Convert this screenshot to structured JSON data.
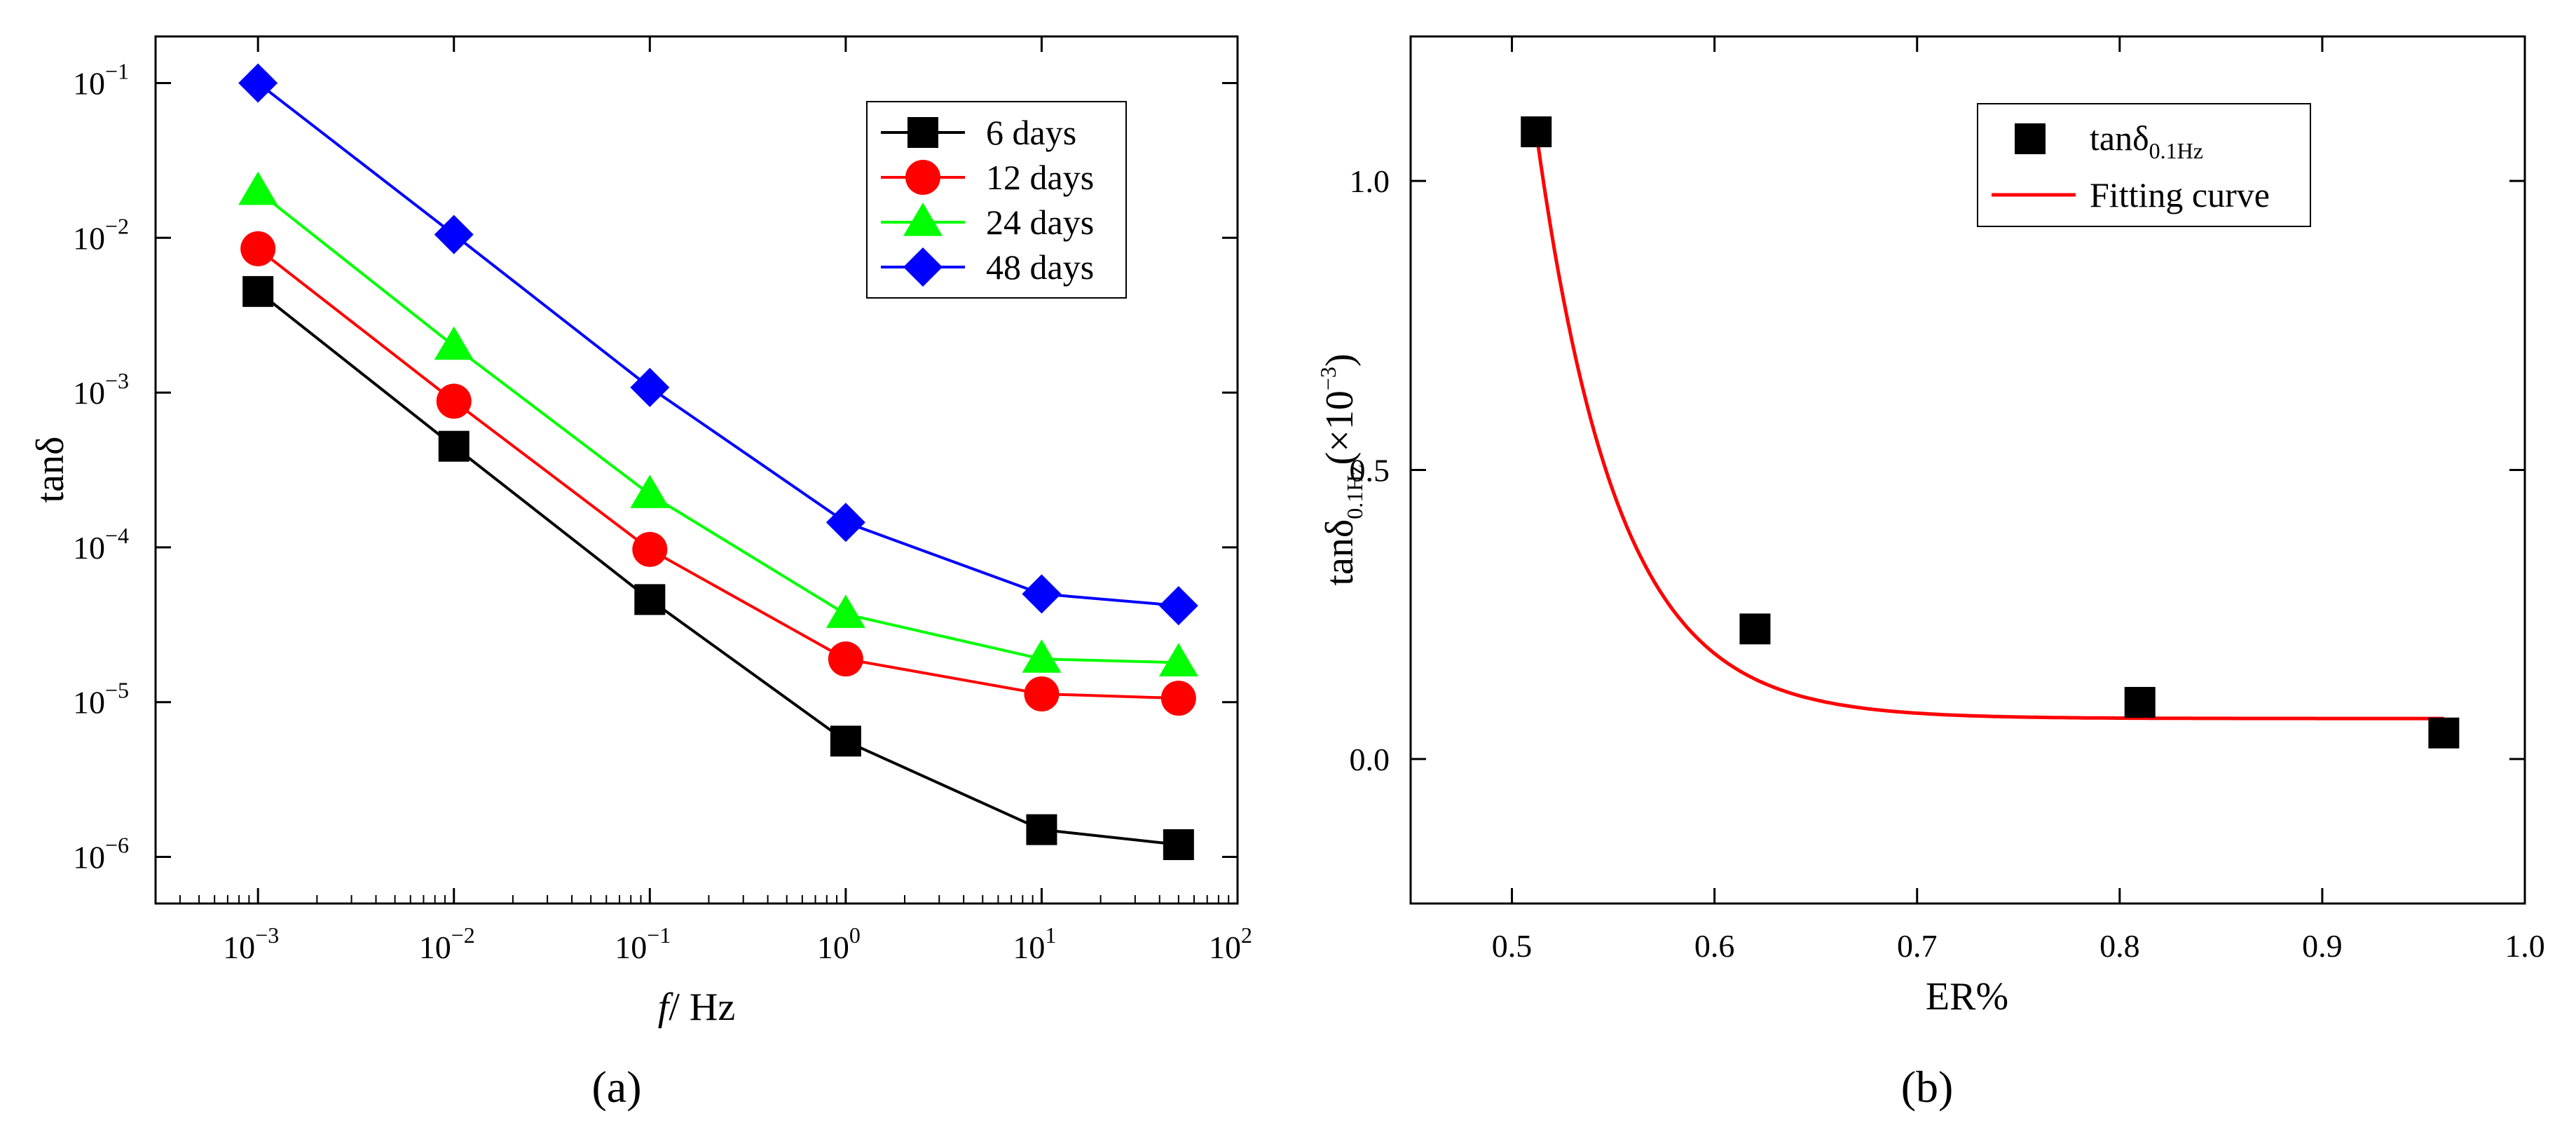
{
  "chart_data": [
    {
      "panel_label": "(a)",
      "type": "line",
      "x_scale": "log",
      "y_scale": "log",
      "xlabel": {
        "italic": "f",
        "rest": "/ Hz"
      },
      "ylabel": "tanδ",
      "xlim": [
        0.0003,
        100
      ],
      "ylim": [
        5e-07,
        0.2
      ],
      "x_ticks": [
        {
          "value": 0.001,
          "base": "10",
          "exp": "−3"
        },
        {
          "value": 0.01,
          "base": "10",
          "exp": "−2"
        },
        {
          "value": 0.1,
          "base": "10",
          "exp": "−1"
        },
        {
          "value": 1,
          "base": "10",
          "exp": "0"
        },
        {
          "value": 10,
          "base": "10",
          "exp": "1"
        },
        {
          "value": 100,
          "base": "10",
          "exp": "2"
        }
      ],
      "y_ticks": [
        {
          "value": 1e-06,
          "base": "10",
          "exp": "−6"
        },
        {
          "value": 1e-05,
          "base": "10",
          "exp": "−5"
        },
        {
          "value": 0.0001,
          "base": "10",
          "exp": "−4"
        },
        {
          "value": 0.001,
          "base": "10",
          "exp": "−3"
        },
        {
          "value": 0.01,
          "base": "10",
          "exp": "−2"
        },
        {
          "value": 0.1,
          "base": "10",
          "exp": "−1"
        }
      ],
      "x": [
        0.001,
        0.01,
        0.1,
        1,
        10,
        50
      ],
      "legend_position": "top-right",
      "series": [
        {
          "name": "6 days",
          "color": "#000000",
          "marker": "square",
          "values": [
            0.0045,
            0.00045,
            4.6e-05,
            5.6e-06,
            1.5e-06,
            1.2e-06
          ]
        },
        {
          "name": "12 days",
          "color": "#ff0000",
          "marker": "circle",
          "values": [
            0.0085,
            0.00088,
            9.7e-05,
            1.9e-05,
            1.13e-05,
            1.06e-05
          ]
        },
        {
          "name": "24 days",
          "color": "#00ff00",
          "marker": "triangle",
          "values": [
            0.02,
            0.002,
            0.00022,
            3.7e-05,
            1.9e-05,
            1.8e-05
          ]
        },
        {
          "name": "48 days",
          "color": "#0000ff",
          "marker": "diamond",
          "values": [
            0.1,
            0.0105,
            0.00108,
            0.000145,
            5e-05,
            4.2e-05
          ]
        }
      ]
    },
    {
      "panel_label": "(b)",
      "type": "scatter",
      "xlabel": "ER%",
      "ylabel": {
        "main": "tanδ",
        "sub": "0.1Hz",
        "tail_open": "(×10",
        "sup": "−3",
        "tail_close": ")"
      },
      "xlim": [
        0.45,
        1.0
      ],
      "ylim": [
        -0.25,
        1.25
      ],
      "x_ticks": [
        "0.5",
        "0.6",
        "0.7",
        "0.8",
        "0.9",
        "1.0"
      ],
      "y_ticks": [
        "0.0",
        "0.5",
        "1.0"
      ],
      "legend_position": "top-right",
      "series": [
        {
          "name_main": "tanδ",
          "name_sub": "0.1Hz",
          "color": "#000000",
          "marker": "square",
          "x": [
            0.512,
            0.62,
            0.81,
            0.96
          ],
          "y": [
            1.085,
            0.225,
            0.098,
            0.045
          ]
        }
      ],
      "fit": {
        "name": "Fitting curve",
        "color": "#ff0000",
        "x_range": [
          0.512,
          0.96
        ],
        "model": {
          "y0": 0.07,
          "A": 1.015,
          "x0": 0.512,
          "tau": 0.04
        }
      }
    }
  ]
}
